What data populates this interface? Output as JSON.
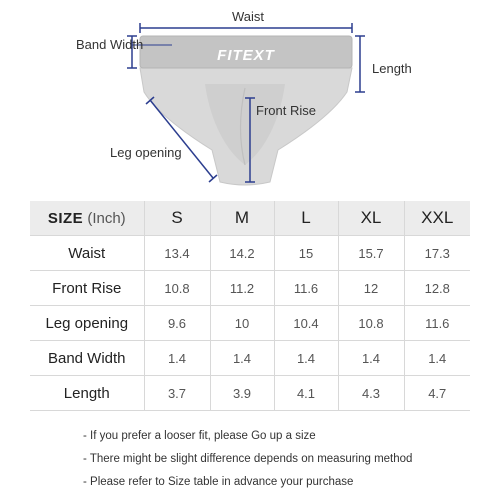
{
  "labels": {
    "waist": "Waist",
    "band_width": "Band Width",
    "length": "Length",
    "front_rise": "Front Rise",
    "leg_opening": "Leg opening",
    "brand_text": "FITEXT"
  },
  "table": {
    "header": {
      "size_word": "SIZE",
      "unit": "(Inch)"
    },
    "sizes": [
      "S",
      "M",
      "L",
      "XL",
      "XXL"
    ],
    "rows": [
      {
        "label": "Waist",
        "values": [
          "13.4",
          "14.2",
          "15",
          "15.7",
          "17.3"
        ]
      },
      {
        "label": "Front Rise",
        "values": [
          "10.8",
          "11.2",
          "11.6",
          "12",
          "12.8"
        ]
      },
      {
        "label": "Leg opening",
        "values": [
          "9.6",
          "10",
          "10.4",
          "10.8",
          "11.6"
        ]
      },
      {
        "label": "Band Width",
        "values": [
          "1.4",
          "1.4",
          "1.4",
          "1.4",
          "1.4"
        ]
      },
      {
        "label": "Length",
        "values": [
          "3.7",
          "3.9",
          "4.1",
          "4.3",
          "4.7"
        ]
      }
    ]
  },
  "notes": [
    "- If you prefer a looser fit, please Go up a size",
    "- There might be slight difference depends on measuring method",
    "- Please refer to Size table in advance your purchase"
  ],
  "colors": {
    "measure_line": "#2c3e8f",
    "header_bg": "#ececec",
    "garment": "#d6d6d6"
  }
}
